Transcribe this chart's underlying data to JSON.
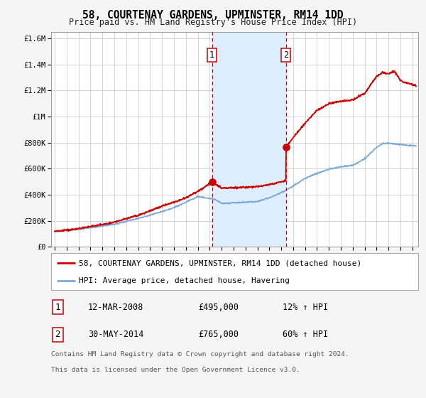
{
  "title": "58, COURTENAY GARDENS, UPMINSTER, RM14 1DD",
  "subtitle": "Price paid vs. HM Land Registry's House Price Index (HPI)",
  "ylim": [
    0,
    1650000
  ],
  "yticks": [
    0,
    200000,
    400000,
    600000,
    800000,
    1000000,
    1200000,
    1400000,
    1600000
  ],
  "ytick_labels": [
    "£0",
    "£200K",
    "£400K",
    "£600K",
    "£800K",
    "£1M",
    "£1.2M",
    "£1.4M",
    "£1.6M"
  ],
  "xlim_start": 1994.7,
  "xlim_end": 2025.5,
  "background_color": "#f5f5f5",
  "plot_bg_color": "#ffffff",
  "grid_color": "#cccccc",
  "red_line_color": "#cc0000",
  "blue_line_color": "#7aaadd",
  "shade_color": "#ddeeff",
  "marker1_x": 2008.19,
  "marker1_y": 495000,
  "marker2_x": 2014.41,
  "marker2_y": 765000,
  "vline1_x": 2008.19,
  "vline2_x": 2014.41,
  "legend_label_red": "58, COURTENAY GARDENS, UPMINSTER, RM14 1DD (detached house)",
  "legend_label_blue": "HPI: Average price, detached house, Havering",
  "annotation1_label": "1",
  "annotation1_date": "12-MAR-2008",
  "annotation1_price": "£495,000",
  "annotation1_hpi": "12% ↑ HPI",
  "annotation2_label": "2",
  "annotation2_date": "30-MAY-2014",
  "annotation2_price": "£765,000",
  "annotation2_hpi": "60% ↑ HPI",
  "footnote_line1": "Contains HM Land Registry data © Crown copyright and database right 2024.",
  "footnote_line2": "This data is licensed under the Open Government Licence v3.0.",
  "title_fontsize": 10.5,
  "subtitle_fontsize": 8.5,
  "tick_fontsize": 7.5,
  "legend_fontsize": 8,
  "annotation_fontsize": 8.5,
  "footnote_fontsize": 6.8,
  "hpi_points_x": [
    1995,
    1997,
    2000,
    2003,
    2005,
    2007,
    2008.5,
    2009,
    2010,
    2011,
    2012,
    2013,
    2014,
    2015,
    2016,
    2017,
    2018,
    2019,
    2020,
    2021,
    2022,
    2022.5,
    2023,
    2024,
    2025
  ],
  "hpi_points_y": [
    118000,
    133000,
    172000,
    242000,
    300000,
    385000,
    362000,
    332000,
    337000,
    342000,
    347000,
    376000,
    415000,
    465000,
    525000,
    563000,
    595000,
    615000,
    625000,
    675000,
    765000,
    790000,
    795000,
    785000,
    775000
  ],
  "red_points_x": [
    1995,
    1997,
    2000,
    2002,
    2004,
    2006,
    2007,
    2008.19,
    2008.19,
    2009,
    2010,
    2011,
    2012,
    2013,
    2014.41,
    2014.41,
    2015,
    2016,
    2017,
    2018,
    2019,
    2020,
    2021,
    2022,
    2022.5,
    2023,
    2023.5,
    2024,
    2024.5,
    2025.3
  ],
  "red_points_y": [
    118000,
    138000,
    188000,
    242000,
    312000,
    375000,
    425000,
    495000,
    495000,
    452000,
    452000,
    458000,
    462000,
    478000,
    507000,
    765000,
    838000,
    948000,
    1048000,
    1098000,
    1118000,
    1128000,
    1178000,
    1308000,
    1338000,
    1328000,
    1348000,
    1275000,
    1258000,
    1238000
  ]
}
